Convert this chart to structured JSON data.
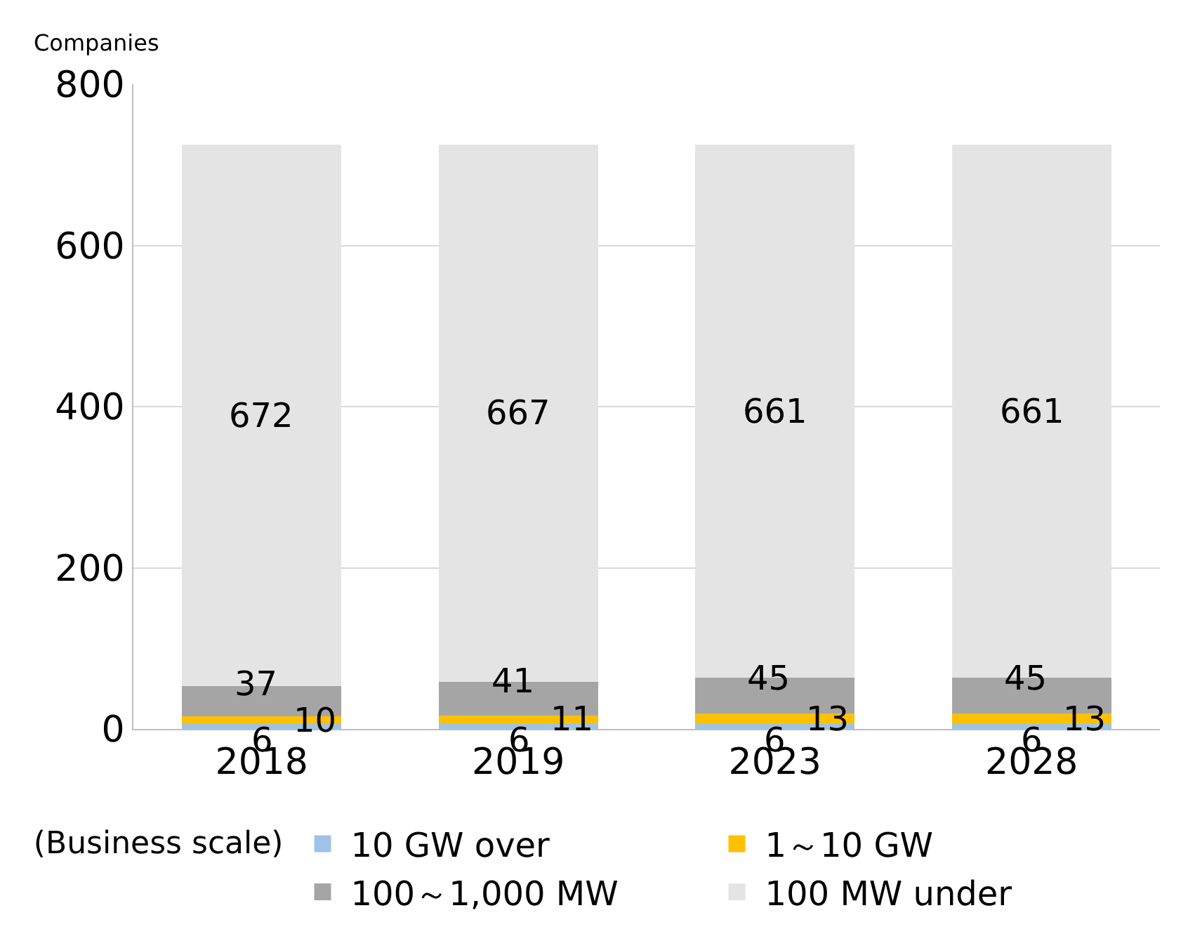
{
  "chart_data": {
    "type": "bar",
    "stacked": true,
    "ylabel": "Companies",
    "legend_title": "(Business scale)",
    "categories": [
      "2018",
      "2019",
      "2023",
      "2028"
    ],
    "series": [
      {
        "name": "10 GW over",
        "color": "#9dc3e6",
        "values": [
          6,
          6,
          6,
          6
        ]
      },
      {
        "name": "1～10 GW",
        "color": "#ffc000",
        "values": [
          10,
          11,
          13,
          13
        ]
      },
      {
        "name": "100～1,000 MW",
        "color": "#a5a5a5",
        "values": [
          37,
          41,
          45,
          45
        ]
      },
      {
        "name": "100 MW under",
        "color": "#e4e4e4",
        "values": [
          672,
          667,
          661,
          661
        ]
      }
    ],
    "ylim": [
      0,
      800
    ],
    "yticks": [
      0,
      200,
      400,
      600,
      800
    ],
    "grid": "y",
    "legend": "bottom",
    "data_labels": true
  }
}
